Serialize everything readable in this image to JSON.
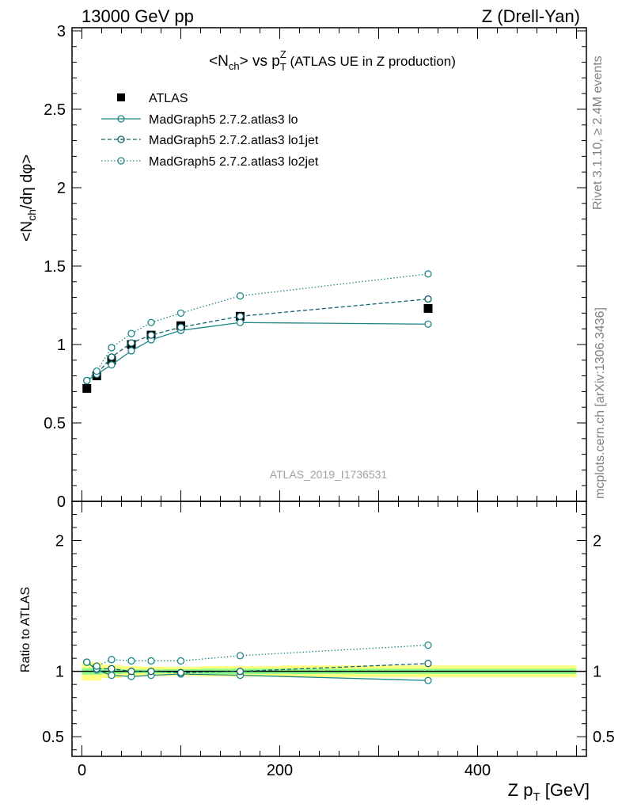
{
  "header": {
    "left": "13000 GeV pp",
    "right": "Z (Drell-Yan)"
  },
  "side_labels": {
    "rivet": "Rivet 3.1.10, ≥ 2.4M events",
    "mcplots": "mcplots.cern.ch [arXiv:1306.3436]"
  },
  "colors": {
    "data": "#000000",
    "mc": "#1a8585",
    "band_green": "#8dff8d",
    "band_yellow": "#ffff80"
  },
  "chart_data": [
    {
      "type": "line",
      "title": "<Nch> vs pT^Z (ATLAS UE in Z production)",
      "title_main": "<N",
      "title_sub1": "ch",
      "title_mid": "> vs p",
      "title_sup": "Z",
      "title_sub2": "T",
      "title_rest": " (ATLAS UE in Z production)",
      "ylabel": "<Nch/dη dφ>",
      "ylabel_pre": "<N",
      "ylabel_sub": "ch",
      "ylabel_post": "/dη dφ>",
      "xlim": [
        -10,
        510
      ],
      "ylim": [
        0,
        3.02
      ],
      "yticks": [
        0,
        0.5,
        1,
        1.5,
        2,
        2.5,
        3
      ],
      "ytick_labels": [
        "0",
        "0.5",
        "1",
        "1.5",
        "2",
        "2.5",
        "3"
      ],
      "watermark": "ATLAS_2019_I1736531",
      "legend_position": "top-left",
      "x": [
        5,
        15,
        30,
        50,
        70,
        100,
        160,
        350
      ],
      "series": [
        {
          "name": "ATLAS",
          "style": "data",
          "values": [
            0.72,
            0.8,
            0.9,
            1.0,
            1.06,
            1.12,
            1.18,
            1.23
          ],
          "errors": [
            0.01,
            0.01,
            0.01,
            0.01,
            0.01,
            0.01,
            0.02,
            0.02
          ]
        },
        {
          "name": "MadGraph5 2.7.2.atlas3 lo",
          "style": "solid",
          "values": [
            0.77,
            0.81,
            0.87,
            0.96,
            1.03,
            1.09,
            1.14,
            1.13
          ],
          "errors": [
            0,
            0,
            0,
            0,
            0,
            0,
            0,
            0.02
          ]
        },
        {
          "name": "MadGraph5 2.7.2.atlas3 lo1jet",
          "style": "dashed",
          "values": [
            0.77,
            0.81,
            0.92,
            1.01,
            1.06,
            1.11,
            1.18,
            1.29
          ],
          "errors": [
            0,
            0,
            0,
            0,
            0,
            0,
            0,
            0
          ]
        },
        {
          "name": "MadGraph5 2.7.2.atlas3 lo2jet",
          "style": "dotted",
          "values": [
            0.77,
            0.83,
            0.98,
            1.07,
            1.14,
            1.2,
            1.31,
            1.45
          ],
          "errors": [
            0,
            0,
            0,
            0,
            0,
            0,
            0,
            0
          ]
        }
      ]
    },
    {
      "type": "line",
      "title": "",
      "ylabel": "Ratio to ATLAS",
      "xlabel": "Z pT [GeV]",
      "xlabel_pre": "Z p",
      "xlabel_sub": "T",
      "xlabel_post": " [GeV]",
      "xlim": [
        -10,
        510
      ],
      "ylim": [
        0.35,
        2.3
      ],
      "xticks": [
        0,
        200,
        400
      ],
      "xtick_labels": [
        "0",
        "200",
        "400"
      ],
      "yticks": [
        0.5,
        1,
        2
      ],
      "ytick_labels": [
        "0.5",
        "1",
        "2"
      ],
      "x": [
        5,
        15,
        30,
        50,
        70,
        100,
        160,
        350
      ],
      "band_edges": [
        0,
        10,
        20,
        40,
        60,
        80,
        120,
        200,
        500
      ],
      "band_green": [
        0.025,
        0.025,
        0.02,
        0.015,
        0.015,
        0.015,
        0.02,
        0.02
      ],
      "band_yellow": [
        0.07,
        0.07,
        0.05,
        0.04,
        0.035,
        0.035,
        0.04,
        0.045
      ],
      "series": [
        {
          "name": "MadGraph5 2.7.2.atlas3 lo",
          "style": "solid",
          "values": [
            1.07,
            1.01,
            0.97,
            0.96,
            0.97,
            0.98,
            0.97,
            0.93
          ],
          "errors": [
            0,
            0,
            0,
            0,
            0,
            0,
            0,
            0.02
          ]
        },
        {
          "name": "MadGraph5 2.7.2.atlas3 lo1jet",
          "style": "dashed",
          "values": [
            1.07,
            1.02,
            1.02,
            1.0,
            1.0,
            0.99,
            1.0,
            1.06
          ],
          "errors": [
            0,
            0,
            0,
            0,
            0,
            0,
            0,
            0
          ]
        },
        {
          "name": "MadGraph5 2.7.2.atlas3 lo2jet",
          "style": "dotted",
          "values": [
            1.07,
            1.04,
            1.09,
            1.08,
            1.08,
            1.08,
            1.12,
            1.2
          ],
          "errors": [
            0,
            0,
            0,
            0,
            0,
            0,
            0,
            0
          ]
        }
      ]
    }
  ]
}
